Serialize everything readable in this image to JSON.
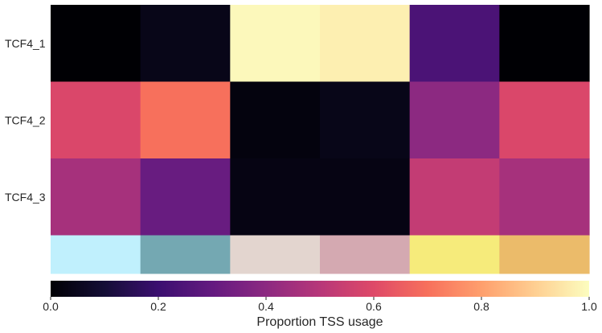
{
  "chart_data": {
    "type": "heatmap",
    "rows": [
      "TCF4_1",
      "TCF4_2",
      "TCF4_3"
    ],
    "column_count": 6,
    "values": [
      [
        0.0,
        0.04,
        0.99,
        0.97,
        0.24,
        0.0
      ],
      [
        0.59,
        0.7,
        0.02,
        0.04,
        0.4,
        0.59
      ],
      [
        0.46,
        0.31,
        0.03,
        0.03,
        0.53,
        0.46
      ]
    ],
    "annotation_row_colors": [
      "#c0f0fd",
      "#74a8b2",
      "#e3d5cf",
      "#d4a9b1",
      "#f6eb7b",
      "#ebbb6a"
    ],
    "colormap": "magma",
    "colorbar": {
      "label": "Proportion TSS usage",
      "range": [
        0,
        1
      ],
      "ticks": [
        "0.0",
        "0.2",
        "0.4",
        "0.6",
        "0.8",
        "1.0"
      ],
      "orientation": "horizontal",
      "placement": "bottom"
    },
    "xlabel": "",
    "ylabel": "",
    "grid": false
  }
}
